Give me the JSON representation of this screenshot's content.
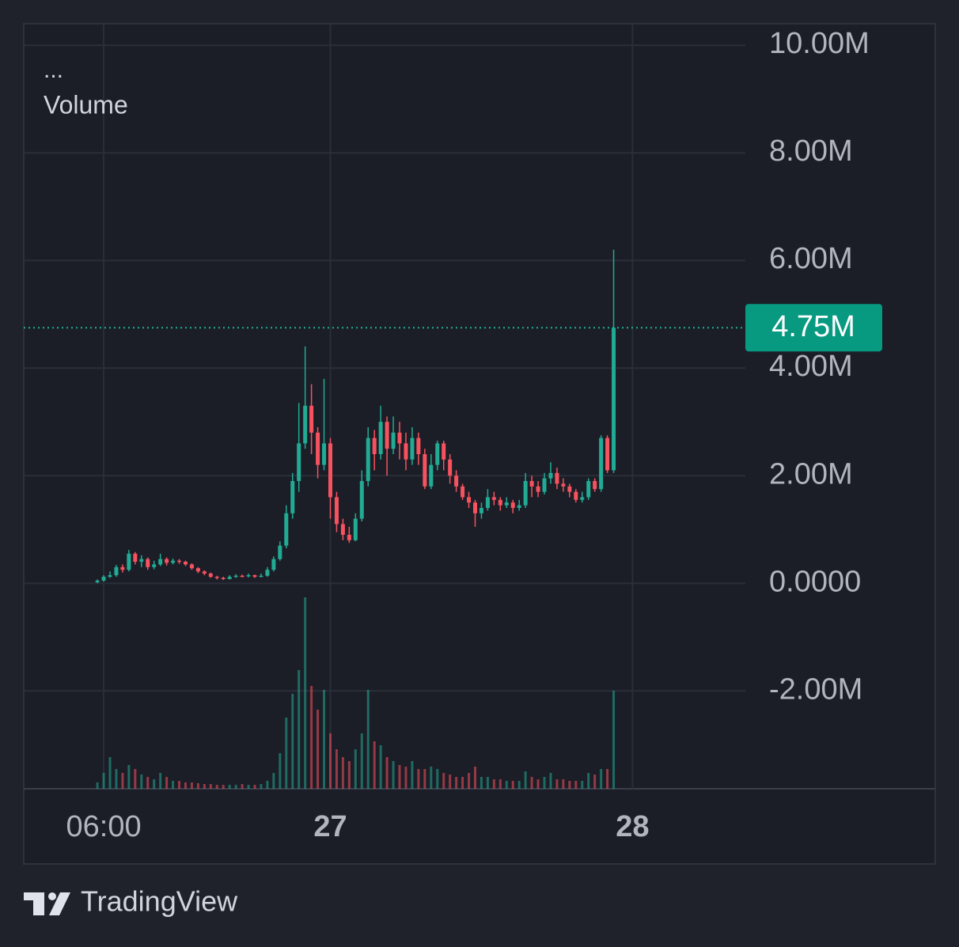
{
  "chart_data": {
    "type": "candlestick",
    "legend_title": "...",
    "indicator": "Volume",
    "branding": "TradingView",
    "up_color": "#22ab94",
    "down_color": "#f7525f",
    "grid": true,
    "xlim": [
      -0.35,
      56.96
    ],
    "xticks": [
      {
        "value": 6,
        "label": "06:00"
      },
      {
        "value": 24,
        "label": "27",
        "bold": true
      },
      {
        "value": 48,
        "label": "28",
        "bold": true
      }
    ],
    "ylim": [
      -3820000,
      10400000
    ],
    "yticks": [
      {
        "value": -2000000,
        "label": "-2.00M"
      },
      {
        "value": 0,
        "label": "0.0000"
      },
      {
        "value": 2000000,
        "label": "2.00M"
      },
      {
        "value": 4000000,
        "label": "4.00M"
      },
      {
        "value": 6000000,
        "label": "6.00M"
      },
      {
        "value": 8000000,
        "label": "8.00M"
      },
      {
        "value": 10000000,
        "label": "10.00M"
      }
    ],
    "price_line": {
      "value": 4750000,
      "label": "4.75M"
    },
    "x": [
      5.5,
      6,
      6.5,
      7,
      7.5,
      8,
      8.5,
      9,
      9.5,
      10,
      10.5,
      11,
      11.5,
      12,
      12.5,
      13,
      13.5,
      14,
      14.5,
      15,
      15.5,
      16,
      16.5,
      17,
      17.5,
      18,
      18.5,
      19,
      19.5,
      20,
      20.5,
      21,
      21.5,
      22,
      22.5,
      23,
      23.5,
      24,
      24.5,
      25,
      25.5,
      26,
      26.5,
      27,
      27.5,
      28,
      28.5,
      29,
      29.5,
      30,
      30.5,
      31,
      31.5,
      32,
      32.5,
      33,
      33.5,
      34,
      34.5,
      35,
      35.5,
      36,
      36.5,
      37,
      37.5,
      38,
      38.5,
      39,
      39.5,
      40,
      40.5,
      41,
      41.5,
      42,
      42.5,
      43,
      43.5,
      44,
      44.5,
      45,
      45.5,
      46,
      46.5
    ],
    "open": [
      20000,
      50000,
      120000,
      150000,
      300000,
      250000,
      550000,
      400000,
      450000,
      300000,
      350000,
      450000,
      380000,
      420000,
      400000,
      350000,
      280000,
      220000,
      180000,
      120000,
      100000,
      80000,
      120000,
      140000,
      130000,
      150000,
      120000,
      140000,
      250000,
      450000,
      700000,
      1300000,
      1900000,
      2600000,
      3300000,
      2800000,
      2200000,
      2600000,
      1600000,
      1100000,
      900000,
      800000,
      1200000,
      1900000,
      2700000,
      2400000,
      3000000,
      2500000,
      2800000,
      2600000,
      2300000,
      2700000,
      2400000,
      1800000,
      2200000,
      2600000,
      2300000,
      2000000,
      1800000,
      1600000,
      1500000,
      1300000,
      1400000,
      1600000,
      1550000,
      1450000,
      1500000,
      1400000,
      1450000,
      1900000,
      1800000,
      1700000,
      1950000,
      2050000,
      1850000,
      1800000,
      1700000,
      1550000,
      1600000,
      1900000,
      1750000,
      2700000,
      2100000
    ],
    "high": [
      70000,
      150000,
      220000,
      340000,
      350000,
      620000,
      580000,
      520000,
      480000,
      420000,
      550000,
      480000,
      460000,
      450000,
      420000,
      370000,
      300000,
      240000,
      200000,
      140000,
      120000,
      150000,
      170000,
      160000,
      180000,
      160000,
      180000,
      300000,
      500000,
      780000,
      1450000,
      2050000,
      3350000,
      4400000,
      3700000,
      2900000,
      3800000,
      2700000,
      1700000,
      1200000,
      1050000,
      1300000,
      2100000,
      2900000,
      2850000,
      3300000,
      3100000,
      3100000,
      3000000,
      2800000,
      2900000,
      2800000,
      2500000,
      2400000,
      2650000,
      2650000,
      2400000,
      2100000,
      1850000,
      1700000,
      1550000,
      1500000,
      1750000,
      1700000,
      1600000,
      1600000,
      1550000,
      1550000,
      2050000,
      2000000,
      1900000,
      2050000,
      2250000,
      2150000,
      1950000,
      1850000,
      1750000,
      1700000,
      1950000,
      1950000,
      2750000,
      2750000,
      6200000
    ],
    "low": [
      0,
      30000,
      100000,
      120000,
      200000,
      220000,
      350000,
      300000,
      250000,
      260000,
      320000,
      330000,
      350000,
      360000,
      320000,
      250000,
      190000,
      150000,
      100000,
      70000,
      60000,
      70000,
      100000,
      110000,
      110000,
      100000,
      110000,
      120000,
      220000,
      420000,
      650000,
      1200000,
      1700000,
      2500000,
      2400000,
      1950000,
      2100000,
      1200000,
      950000,
      800000,
      750000,
      780000,
      1150000,
      1800000,
      2100000,
      2300000,
      2000000,
      2400000,
      2300000,
      2100000,
      2200000,
      2200000,
      1750000,
      1750000,
      2100000,
      2100000,
      1850000,
      1700000,
      1550000,
      1400000,
      1050000,
      1200000,
      1350000,
      1450000,
      1350000,
      1400000,
      1300000,
      1350000,
      1400000,
      1600000,
      1600000,
      1650000,
      1850000,
      1750000,
      1700000,
      1600000,
      1500000,
      1500000,
      1550000,
      1700000,
      1700000,
      2050000,
      2050000
    ],
    "close": [
      50000,
      120000,
      150000,
      300000,
      250000,
      550000,
      400000,
      450000,
      300000,
      350000,
      450000,
      380000,
      420000,
      400000,
      350000,
      280000,
      220000,
      180000,
      120000,
      100000,
      80000,
      120000,
      140000,
      130000,
      150000,
      120000,
      140000,
      250000,
      450000,
      700000,
      1300000,
      1900000,
      2600000,
      3300000,
      2800000,
      2200000,
      2600000,
      1600000,
      1100000,
      900000,
      800000,
      1200000,
      1900000,
      2700000,
      2400000,
      3000000,
      2500000,
      2800000,
      2600000,
      2300000,
      2700000,
      2400000,
      1800000,
      2200000,
      2600000,
      2300000,
      2000000,
      1800000,
      1600000,
      1500000,
      1300000,
      1400000,
      1600000,
      1550000,
      1450000,
      1500000,
      1400000,
      1450000,
      1900000,
      1800000,
      1700000,
      1950000,
      2050000,
      1850000,
      1800000,
      1700000,
      1550000,
      1600000,
      1900000,
      1750000,
      2700000,
      2100000,
      4750000
    ],
    "volume": [
      80000,
      200000,
      400000,
      250000,
      200000,
      300000,
      250000,
      180000,
      150000,
      120000,
      200000,
      150000,
      100000,
      100000,
      80000,
      80000,
      70000,
      60000,
      60000,
      50000,
      50000,
      50000,
      50000,
      60000,
      50000,
      50000,
      60000,
      100000,
      200000,
      450000,
      900000,
      1200000,
      1500000,
      2420000,
      1300000,
      1000000,
      1250000,
      700000,
      500000,
      400000,
      350000,
      500000,
      700000,
      1250000,
      600000,
      550000,
      400000,
      350000,
      300000,
      280000,
      350000,
      250000,
      250000,
      280000,
      250000,
      200000,
      180000,
      150000,
      150000,
      200000,
      280000,
      150000,
      150000,
      120000,
      120000,
      100000,
      100000,
      100000,
      220000,
      150000,
      120000,
      150000,
      200000,
      120000,
      120000,
      100000,
      100000,
      100000,
      200000,
      180000,
      250000,
      250000,
      1240000
    ]
  }
}
